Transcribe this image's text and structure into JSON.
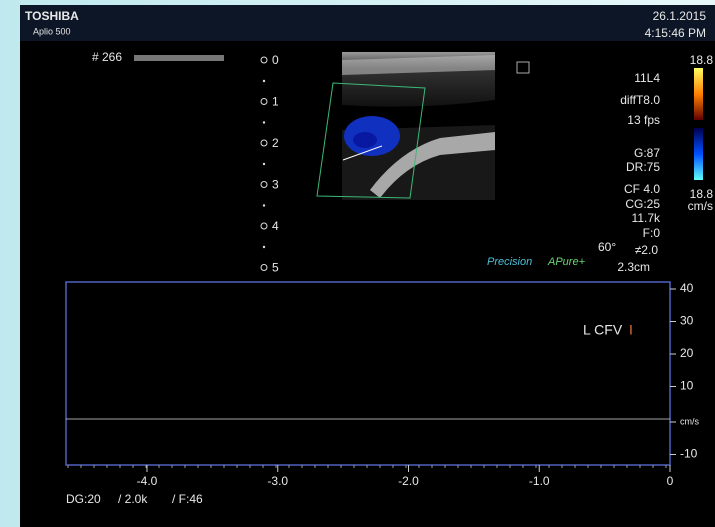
{
  "header": {
    "brand": "TOSHIBA",
    "model": "Aplio 500",
    "date": "26.1.2015",
    "time": "4:15:46 PM"
  },
  "frame_label": "# 266",
  "depth_scale": [
    "0",
    "1",
    "2",
    "3",
    "4",
    "5"
  ],
  "parameters": [
    "11L4",
    "diffT8.0",
    "13 fps",
    "G:87",
    "DR:75",
    "CF 4.0",
    "CG:25",
    "11.7k",
    "F:0"
  ],
  "steer": {
    "angle": "60°",
    "value": "≠2.0",
    "depth": "2.3cm"
  },
  "modes": [
    "Precision",
    "APure+"
  ],
  "color_scale": {
    "top": "18.8",
    "bottom": "18.8",
    "unit": "cm/s"
  },
  "spectrum": {
    "label": "L CFV",
    "cursor": "I",
    "y_ticks": [
      "40",
      "30",
      "20",
      "10",
      "cm/s",
      "-10"
    ],
    "x_ticks": [
      "-4.0",
      "-3.0",
      "-2.0",
      "-1.0",
      "0"
    ]
  },
  "footer": [
    "DG:20",
    "/ 2.0k",
    "/ F:46"
  ]
}
